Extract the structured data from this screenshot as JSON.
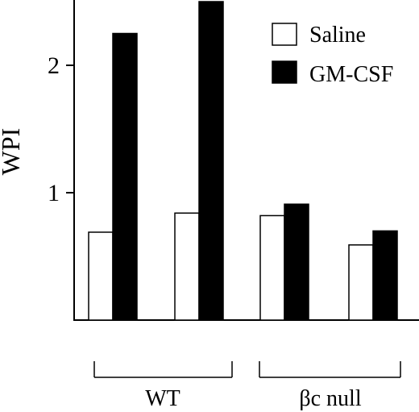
{
  "chart_data": {
    "type": "bar",
    "ylabel": "WPI",
    "xlabel": "",
    "ylim": [
      0,
      2.5
    ],
    "yticks": [
      1,
      2
    ],
    "bars_per_group": 2,
    "groups": [
      "WT",
      "βc null"
    ],
    "series": [
      {
        "name": "Saline",
        "color": "#ffffff",
        "values": [
          0.69,
          0.84,
          0.82,
          0.59
        ]
      },
      {
        "name": "GM-CSF",
        "color": "#000000",
        "values": [
          2.25,
          2.5,
          0.91,
          0.7
        ]
      }
    ],
    "legend": {
      "position": "top-right"
    }
  }
}
